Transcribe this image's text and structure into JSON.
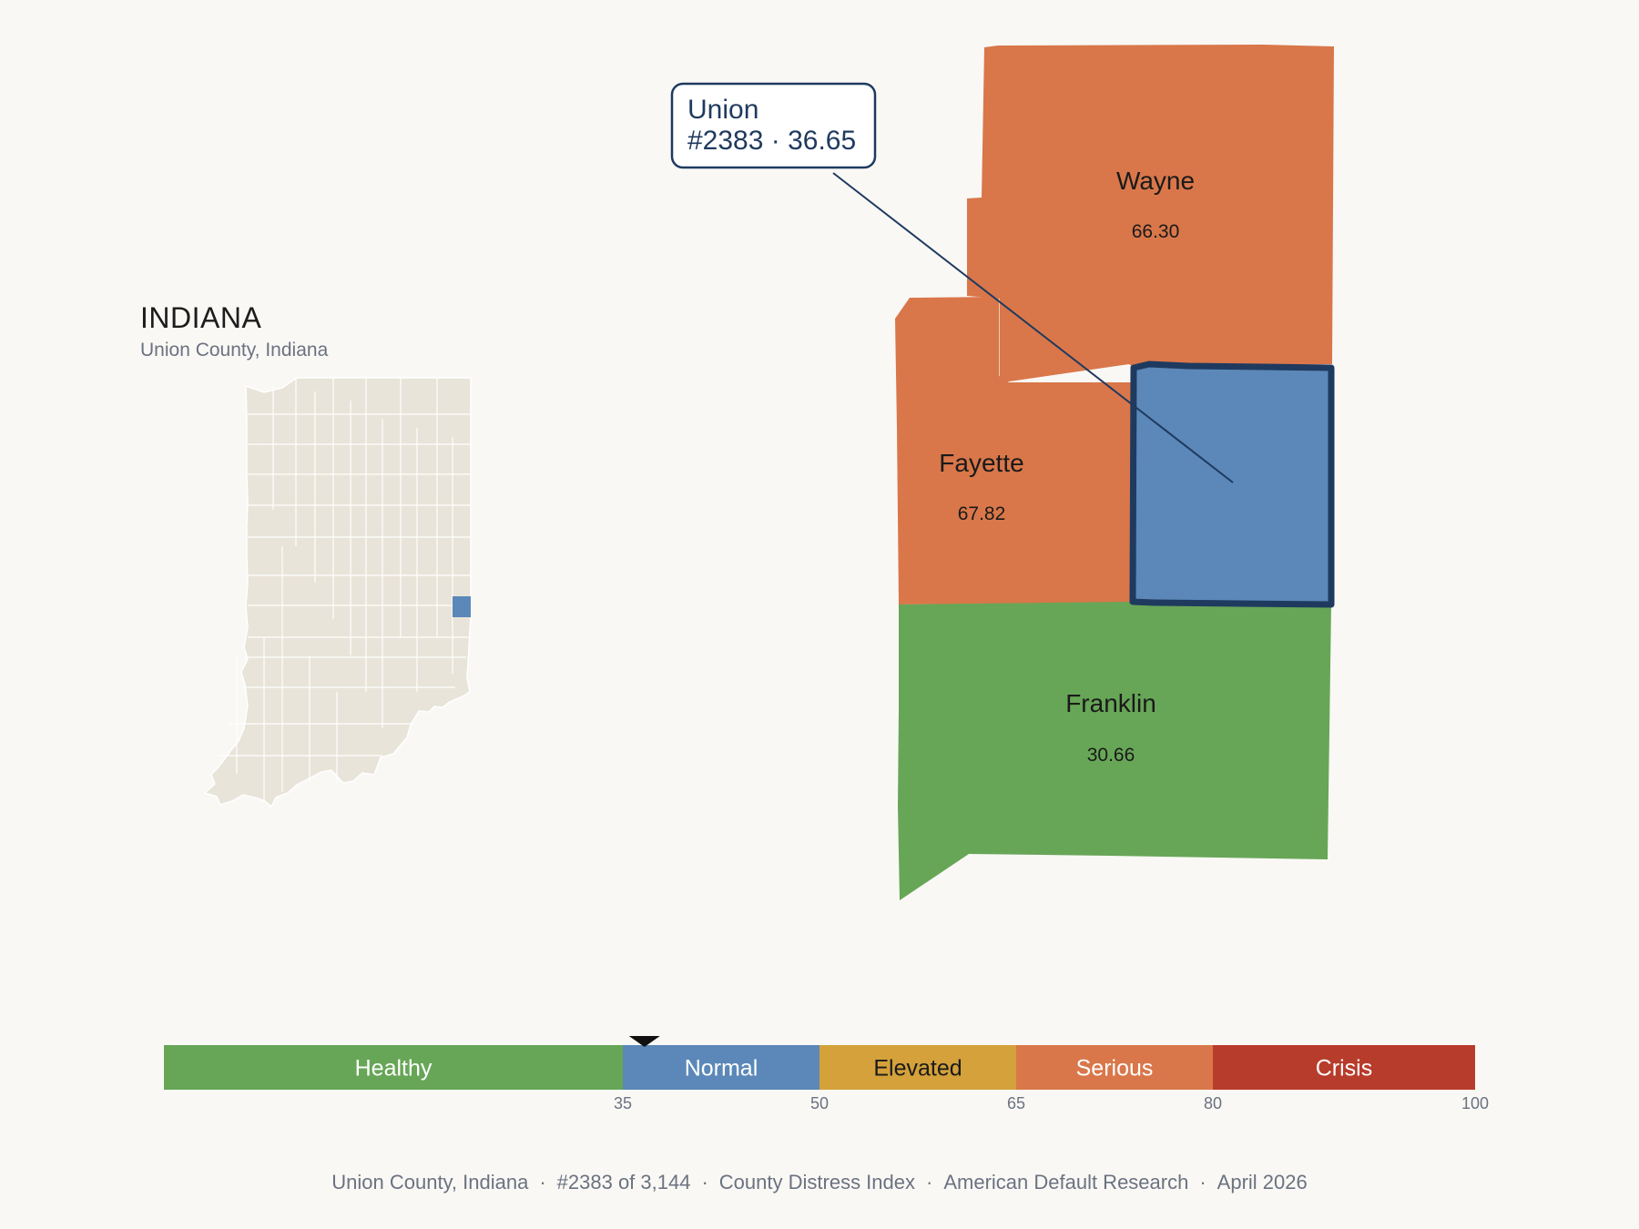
{
  "inset": {
    "title": "INDIANA",
    "subtitle": "Union County, Indiana"
  },
  "counties": [
    {
      "id": "wayne",
      "name": "Wayne",
      "value": "66.30",
      "color": "#d9774a"
    },
    {
      "id": "fayette",
      "name": "Fayette",
      "value": "67.82",
      "color": "#d9774a"
    },
    {
      "id": "union",
      "name": "Union",
      "value": "36.65",
      "color": "#5b88b8",
      "highlighted": true
    },
    {
      "id": "franklin",
      "name": "Franklin",
      "value": "30.66",
      "color": "#67a657"
    }
  ],
  "callout": {
    "line1": "Union",
    "line2": "#2383 · 36.65"
  },
  "scale": {
    "min": 0,
    "max": 100,
    "marker_value": 36.65,
    "segments": [
      {
        "label": "Healthy",
        "from": 0,
        "to": 35,
        "color": "#67a657",
        "text_color": "#ffffff"
      },
      {
        "label": "Normal",
        "from": 35,
        "to": 50,
        "color": "#5b88b8",
        "text_color": "#ffffff"
      },
      {
        "label": "Elevated",
        "from": 50,
        "to": 65,
        "color": "#d4a13a",
        "text_color": "#1a1a1a"
      },
      {
        "label": "Serious",
        "from": 65,
        "to": 80,
        "color": "#d9774a",
        "text_color": "#ffffff"
      },
      {
        "label": "Crisis",
        "from": 80,
        "to": 100,
        "color": "#b83c2b",
        "text_color": "#ffffff"
      }
    ],
    "ticks": [
      "35",
      "50",
      "65",
      "80",
      "100"
    ]
  },
  "footer": {
    "items": [
      "Union County, Indiana",
      "#2383 of 3,144",
      "County Distress Index",
      "American Default Research",
      "April 2026"
    ]
  },
  "colors": {
    "background": "#f9f8f5",
    "state_fill": "#e9e4d9",
    "highlight_border": "#1f3a5f"
  }
}
